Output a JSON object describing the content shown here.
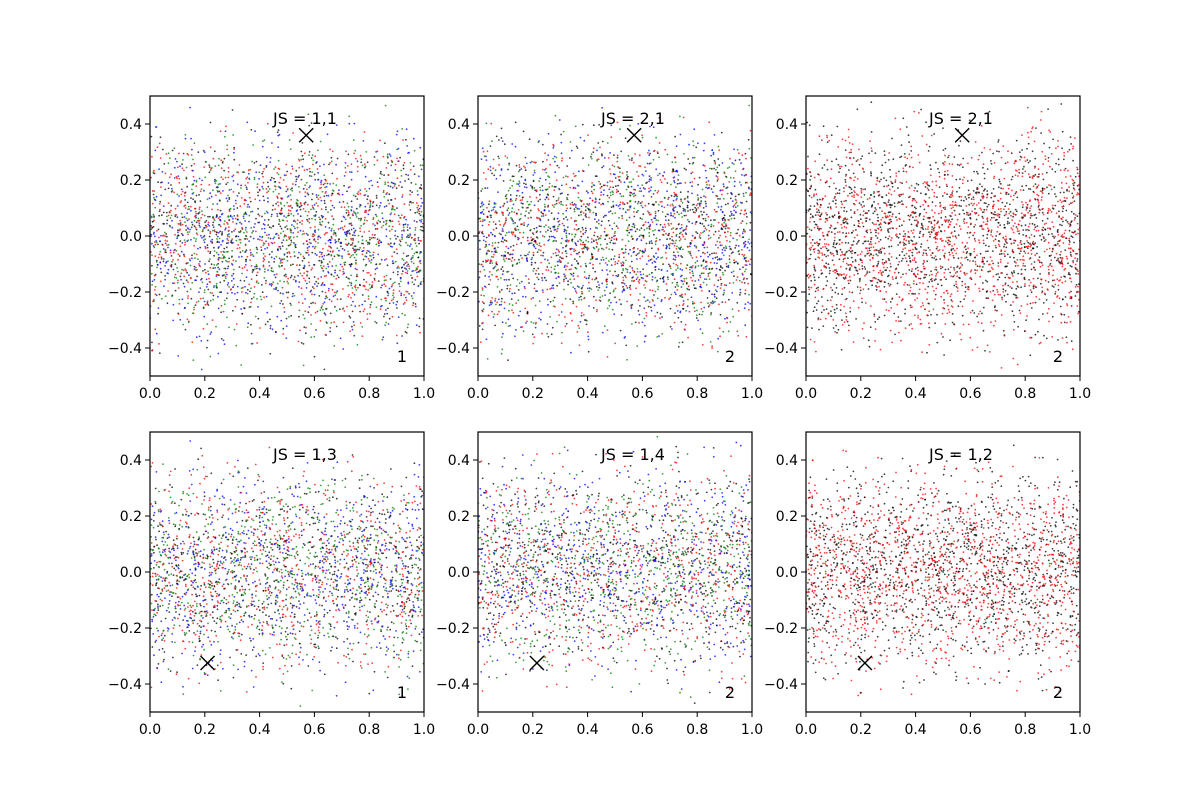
{
  "chart_data": [
    {
      "type": "scatter",
      "title": "JS = 1,1",
      "corner_label": "1",
      "xlim": [
        0,
        1
      ],
      "ylim": [
        -0.5,
        0.5
      ],
      "xticks": [
        "0.0",
        "0.2",
        "0.4",
        "0.6",
        "0.8",
        "1.0"
      ],
      "yticks": [
        "−0.4",
        "−0.2",
        "0.0",
        "0.2",
        "0.4"
      ],
      "marker": {
        "x": 0.57,
        "y": 0.36
      },
      "series_colors": [
        "#0000ff",
        "#008000",
        "#ff0000",
        "#000000"
      ],
      "grid": false
    },
    {
      "type": "scatter",
      "title": "JS = 2,1",
      "corner_label": "2",
      "xlim": [
        0,
        1
      ],
      "ylim": [
        -0.5,
        0.5
      ],
      "xticks": [
        "0.0",
        "0.2",
        "0.4",
        "0.6",
        "0.8",
        "1.0"
      ],
      "yticks": [
        "−0.4",
        "−0.2",
        "0.0",
        "0.2",
        "0.4"
      ],
      "marker": {
        "x": 0.57,
        "y": 0.36
      },
      "series_colors": [
        "#0000ff",
        "#008000",
        "#ff0000",
        "#000000"
      ],
      "grid": false
    },
    {
      "type": "scatter",
      "title": "JS = 2,1",
      "corner_label": "2",
      "xlim": [
        0,
        1
      ],
      "ylim": [
        -0.5,
        0.5
      ],
      "xticks": [
        "0.0",
        "0.2",
        "0.4",
        "0.6",
        "0.8",
        "1.0"
      ],
      "yticks": [
        "−0.4",
        "−0.2",
        "0.0",
        "0.2",
        "0.4"
      ],
      "marker": {
        "x": 0.57,
        "y": 0.36
      },
      "series_colors": [
        "#ff0000",
        "#000000"
      ],
      "grid": false
    },
    {
      "type": "scatter",
      "title": "JS = 1,3",
      "corner_label": "1",
      "xlim": [
        0,
        1
      ],
      "ylim": [
        -0.5,
        0.5
      ],
      "xticks": [
        "0.0",
        "0.2",
        "0.4",
        "0.6",
        "0.8",
        "1.0"
      ],
      "yticks": [
        "−0.4",
        "−0.2",
        "0.0",
        "0.2",
        "0.4"
      ],
      "marker": {
        "x": 0.21,
        "y": -0.325
      },
      "series_colors": [
        "#0000ff",
        "#008000",
        "#ff0000",
        "#000000"
      ],
      "grid": false
    },
    {
      "type": "scatter",
      "title": "JS = 1,4",
      "corner_label": "2",
      "xlim": [
        0,
        1
      ],
      "ylim": [
        -0.5,
        0.5
      ],
      "xticks": [
        "0.0",
        "0.2",
        "0.4",
        "0.6",
        "0.8",
        "1.0"
      ],
      "yticks": [
        "−0.4",
        "−0.2",
        "0.0",
        "0.2",
        "0.4"
      ],
      "marker": {
        "x": 0.215,
        "y": -0.325
      },
      "series_colors": [
        "#0000ff",
        "#008000",
        "#ff0000",
        "#000000"
      ],
      "grid": false
    },
    {
      "type": "scatter",
      "title": "JS = 1,2",
      "corner_label": "2",
      "xlim": [
        0,
        1
      ],
      "ylim": [
        -0.5,
        0.5
      ],
      "xticks": [
        "0.0",
        "0.2",
        "0.4",
        "0.6",
        "0.8",
        "1.0"
      ],
      "yticks": [
        "−0.4",
        "−0.2",
        "0.0",
        "0.2",
        "0.4"
      ],
      "marker": {
        "x": 0.215,
        "y": -0.325
      },
      "series_colors": [
        "#ff0000",
        "#000000"
      ],
      "grid": false
    }
  ]
}
